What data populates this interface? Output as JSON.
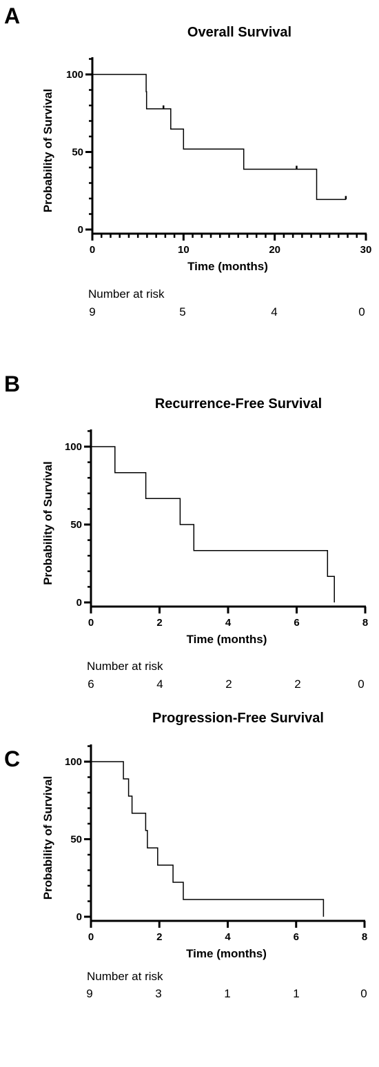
{
  "chart_data": [
    {
      "type": "line",
      "step": true,
      "panel": "A",
      "title": "Overall Survival",
      "xlabel": "Time (months)",
      "ylabel": "Probability of Survival",
      "xlim": [
        0,
        30
      ],
      "ylim": [
        0,
        100
      ],
      "x_ticks": [
        0,
        10,
        20,
        30
      ],
      "y_ticks": [
        0,
        50,
        100
      ],
      "x_minor_per_major": 10,
      "series": [
        {
          "points": [
            [
              0,
              100
            ],
            [
              5.9,
              100
            ],
            [
              5.9,
              88.9
            ],
            [
              5.95,
              88.9
            ],
            [
              5.95,
              77.8
            ],
            [
              8.6,
              77.8
            ],
            [
              8.6,
              64.8
            ],
            [
              10.0,
              64.8
            ],
            [
              10.0,
              51.9
            ],
            [
              16.6,
              51.9
            ],
            [
              16.6,
              38.9
            ],
            [
              24.6,
              38.9
            ],
            [
              24.6,
              19.4
            ],
            [
              27.8,
              19.4
            ]
          ],
          "censored": [
            [
              7.8,
              77.8
            ],
            [
              22.4,
              38.9
            ],
            [
              27.8,
              19.4
            ]
          ]
        }
      ],
      "risk_table": {
        "label": "Number at risk",
        "values": [
          "9",
          "5",
          "4",
          "0"
        ]
      }
    },
    {
      "type": "line",
      "step": true,
      "panel": "B",
      "title": "Recurrence-Free Survival",
      "xlabel": "Time (months)",
      "ylabel": "Probability of Survival",
      "xlim": [
        0,
        8
      ],
      "ylim": [
        0,
        100
      ],
      "x_ticks": [
        0,
        2,
        4,
        6,
        8
      ],
      "y_ticks": [
        0,
        50,
        100
      ],
      "x_minor_per_major": 0,
      "series": [
        {
          "points": [
            [
              0,
              100
            ],
            [
              0.7,
              100
            ],
            [
              0.7,
              83.3
            ],
            [
              1.6,
              83.3
            ],
            [
              1.6,
              66.7
            ],
            [
              2.6,
              66.7
            ],
            [
              2.6,
              50
            ],
            [
              3.0,
              50
            ],
            [
              3.0,
              33.3
            ],
            [
              6.9,
              33.3
            ],
            [
              6.9,
              16.7
            ],
            [
              7.1,
              16.7
            ],
            [
              7.1,
              0
            ]
          ],
          "censored": []
        }
      ],
      "risk_table": {
        "label": "Number at risk",
        "values": [
          "6",
          "4",
          "2",
          "2",
          "0"
        ]
      }
    },
    {
      "type": "line",
      "step": true,
      "panel": "C",
      "title": "Progression-Free Survival",
      "xlabel": "Time (months)",
      "ylabel": "Probability of Survival",
      "xlim": [
        0,
        8
      ],
      "ylim": [
        0,
        100
      ],
      "x_ticks": [
        0,
        2,
        4,
        6,
        8
      ],
      "y_ticks": [
        0,
        50,
        100
      ],
      "x_minor_per_major": 0,
      "series": [
        {
          "points": [
            [
              0,
              100
            ],
            [
              0.95,
              100
            ],
            [
              0.95,
              88.9
            ],
            [
              1.1,
              88.9
            ],
            [
              1.1,
              77.8
            ],
            [
              1.2,
              77.8
            ],
            [
              1.2,
              66.7
            ],
            [
              1.6,
              66.7
            ],
            [
              1.6,
              55.6
            ],
            [
              1.65,
              55.6
            ],
            [
              1.65,
              44.4
            ],
            [
              1.95,
              44.4
            ],
            [
              1.95,
              33.3
            ],
            [
              2.4,
              33.3
            ],
            [
              2.4,
              22.2
            ],
            [
              2.7,
              22.2
            ],
            [
              2.7,
              11.1
            ],
            [
              6.8,
              11.1
            ],
            [
              6.8,
              0
            ]
          ],
          "censored": []
        }
      ],
      "risk_table": {
        "label": "Number at risk",
        "values": [
          "9",
          "3",
          "1",
          "1",
          "0"
        ]
      }
    }
  ]
}
